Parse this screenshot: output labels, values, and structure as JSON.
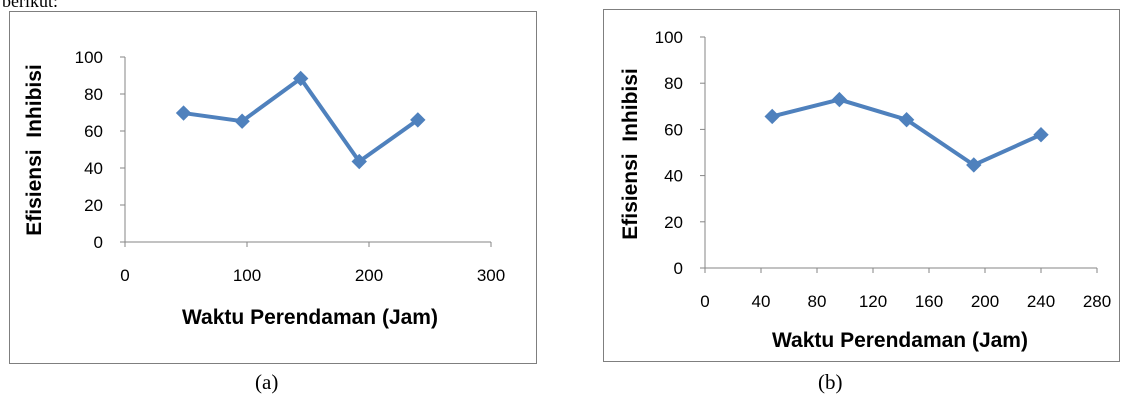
{
  "top_fragment": "berikut:",
  "captions": {
    "a": "(a)",
    "b": "(b)"
  },
  "series_color": "#4f81bd",
  "chart_data": [
    {
      "type": "line",
      "x": [
        48,
        96,
        144,
        192,
        240
      ],
      "y": [
        69.7,
        65.3,
        88.4,
        43.5,
        66.0
      ],
      "xlabel": "Waktu Perendaman (Jam)",
      "ylabel": "Efisiensi  Inhibisi",
      "xlim": [
        0,
        300
      ],
      "ylim": [
        0,
        100
      ],
      "xticks": [
        0,
        100,
        200,
        300
      ],
      "yticks": [
        0,
        20,
        40,
        60,
        80,
        100
      ],
      "grid": false,
      "marker": "diamond"
    },
    {
      "type": "line",
      "x": [
        48,
        96,
        144,
        192,
        240
      ],
      "y": [
        65.6,
        72.9,
        64.2,
        44.6,
        57.7
      ],
      "xlabel": "Waktu Perendaman (Jam)",
      "ylabel": "Efisiensi  Inhibisi",
      "xlim": [
        0,
        280
      ],
      "ylim": [
        0,
        100
      ],
      "xticks": [
        0,
        40,
        80,
        120,
        160,
        200,
        240,
        280
      ],
      "yticks": [
        0,
        20,
        40,
        60,
        80,
        100
      ],
      "grid": false,
      "marker": "diamond"
    }
  ]
}
